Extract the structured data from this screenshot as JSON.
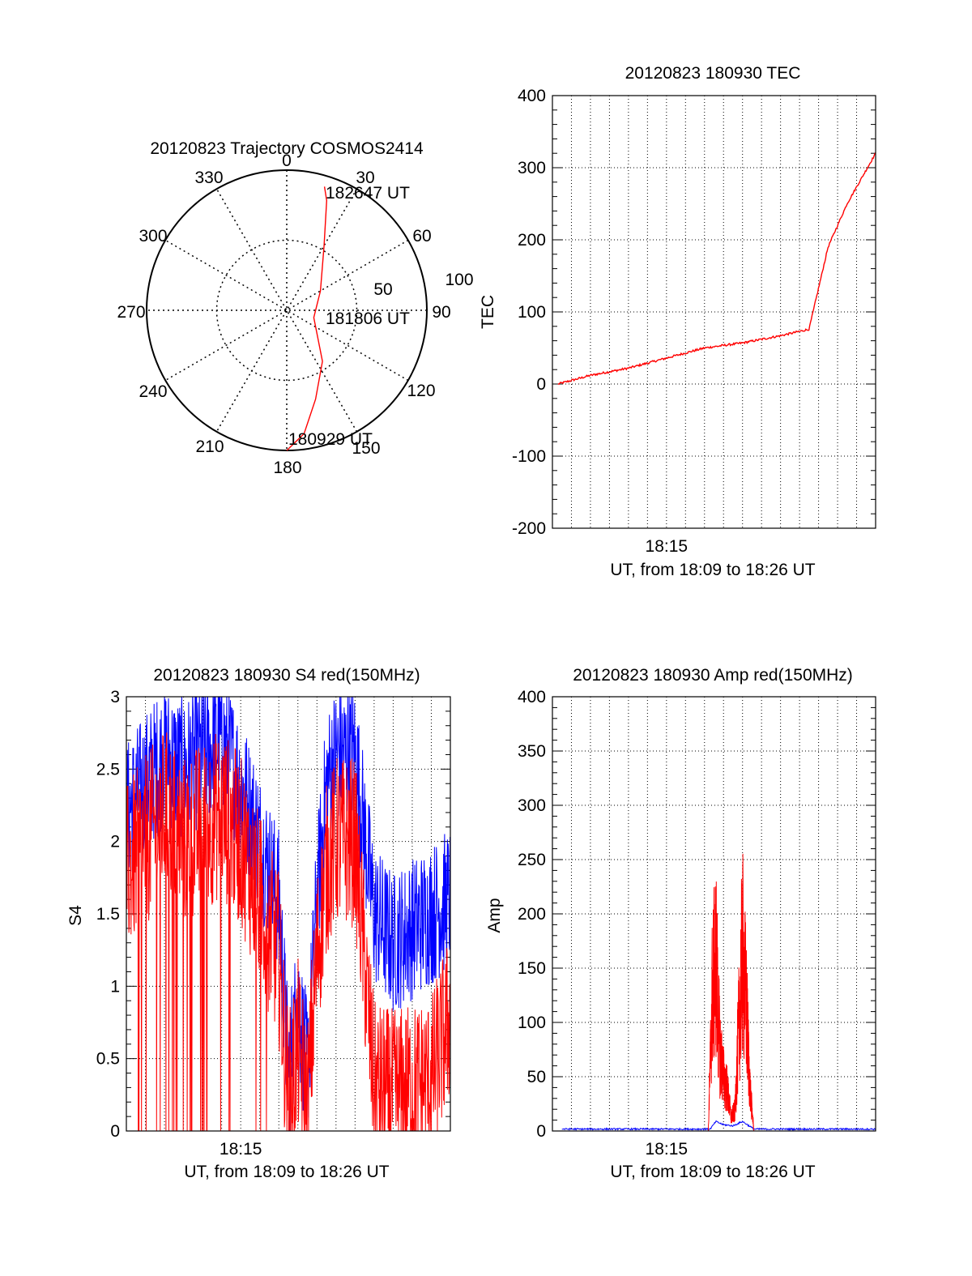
{
  "colors": {
    "red": "#ff0000",
    "blue": "#0000ff",
    "axis": "#000000"
  },
  "chart_data": [
    {
      "type": "polar",
      "title": "20120823 Trajectory COSMOS2414",
      "azimuth_labels": [
        "0",
        "30",
        "60",
        "90",
        "120",
        "150",
        "180",
        "210",
        "240",
        "270",
        "300",
        "330"
      ],
      "radial_labels": [
        "50",
        "100"
      ],
      "point_labels": [
        "182647 UT",
        "181806 UT",
        "180929 UT"
      ],
      "series": [
        {
          "color": "red",
          "azimuth_deg": [
            180,
            172,
            162,
            145,
            105,
            60,
            30,
            20,
            17
          ],
          "zenith_deg": [
            90,
            80,
            60,
            40,
            18,
            25,
            48,
            75,
            83
          ]
        }
      ]
    },
    {
      "type": "line",
      "title": "20120823 180930 TEC",
      "xlabel": "UT, from 18:09 to 18:26 UT",
      "ylabel": "TEC",
      "x_tick_label": "18:15",
      "x_tick_at_min": 6,
      "xlim_min": [
        0,
        17
      ],
      "ylim": [
        -200,
        400
      ],
      "yticks": [
        -200,
        -100,
        0,
        100,
        200,
        300,
        400
      ],
      "series": [
        {
          "color": "red",
          "x_min": [
            0.3,
            2,
            4,
            6,
            8,
            10,
            12,
            13.5,
            14.5,
            15.5,
            17
          ],
          "values": [
            0,
            12,
            22,
            36,
            50,
            57,
            67,
            76,
            190,
            250,
            320
          ]
        }
      ]
    },
    {
      "type": "line",
      "title": "20120823 180930 S4 red(150MHz)",
      "xlabel": "UT, from 18:09 to 18:26 UT",
      "ylabel": "S4",
      "x_tick_label": "18:15",
      "x_tick_at_min": 6,
      "xlim_min": [
        0,
        17
      ],
      "ylim": [
        0,
        3
      ],
      "yticks": [
        "0",
        "0.5",
        "1",
        "1.5",
        "2",
        "2.5",
        "3"
      ],
      "yticks_values": [
        0,
        0.5,
        1,
        1.5,
        2,
        2.5,
        3
      ],
      "series": [
        {
          "color": "blue",
          "x_min": [
            0,
            1,
            2,
            3,
            4,
            5,
            6,
            7,
            8,
            8.5,
            9,
            9.5,
            10,
            10.5,
            11,
            12,
            13,
            14,
            15,
            16,
            17
          ],
          "values": [
            2.2,
            2.4,
            2.6,
            2.5,
            2.6,
            2.7,
            2.4,
            2.0,
            1.6,
            0.4,
            0.9,
            0.4,
            1.6,
            2.4,
            2.6,
            2.6,
            1.5,
            1.3,
            1.4,
            1.5,
            1.6
          ]
        },
        {
          "color": "red",
          "x_min": [
            0,
            1,
            2,
            3,
            4,
            5,
            6,
            7,
            8,
            8.5,
            9,
            9.5,
            10,
            10.5,
            11,
            12,
            13,
            14,
            15,
            16,
            17
          ],
          "values": [
            1.8,
            2.0,
            2.2,
            2.0,
            2.1,
            2.2,
            2.0,
            1.6,
            1.2,
            0.2,
            0.6,
            0.15,
            1.2,
            1.8,
            2.0,
            2.0,
            0.3,
            0.25,
            0.3,
            0.35,
            0.8
          ]
        }
      ]
    },
    {
      "type": "line",
      "title": "20120823 180930 Amp red(150MHz)",
      "xlabel": "UT, from 18:09 to 18:26 UT",
      "ylabel": "Amp",
      "x_tick_label": "18:15",
      "x_tick_at_min": 6,
      "xlim_min": [
        0,
        17
      ],
      "ylim": [
        0,
        400
      ],
      "yticks": [
        0,
        50,
        100,
        150,
        200,
        250,
        300,
        350,
        400
      ],
      "series": [
        {
          "color": "blue",
          "x_min": [
            0.5,
            4,
            8.3,
            8.6,
            9,
            9.5,
            10,
            10.6,
            11,
            14,
            17
          ],
          "values": [
            1,
            1,
            1,
            8,
            5,
            4,
            8,
            1,
            1,
            1,
            1
          ]
        },
        {
          "color": "red",
          "x_min": [
            8.2,
            8.4,
            8.6,
            8.8,
            9.0,
            9.2,
            9.4,
            9.6,
            9.8,
            10.0,
            10.2,
            10.4,
            10.6,
            10.7
          ],
          "values": [
            0,
            195,
            255,
            120,
            80,
            60,
            20,
            30,
            150,
            265,
            180,
            60,
            0,
            0
          ]
        }
      ]
    }
  ]
}
